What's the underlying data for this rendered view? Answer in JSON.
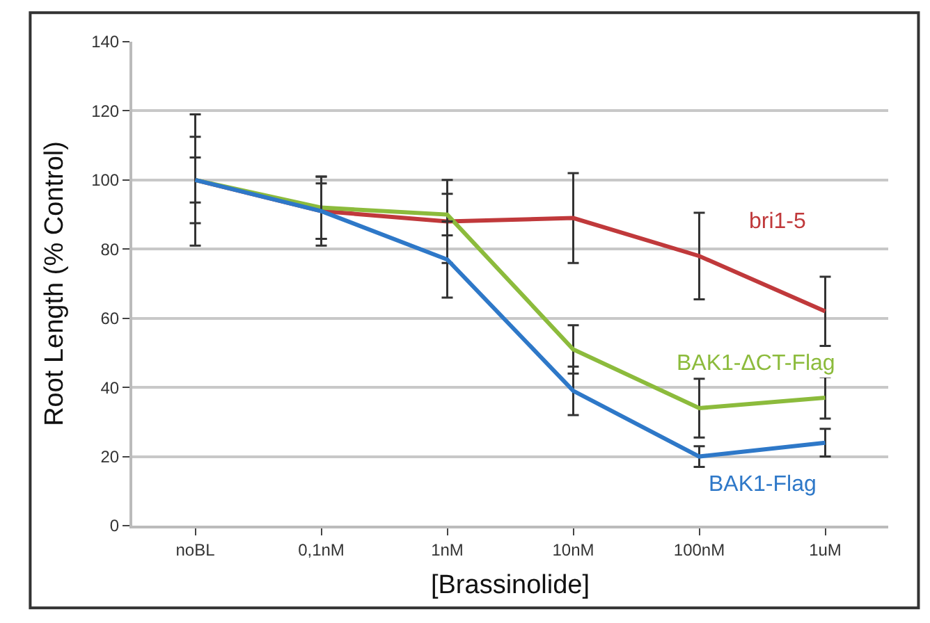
{
  "chart_data": {
    "type": "line",
    "xlabel": "[Brassinolide]",
    "ylabel": "Root Length (% Control)",
    "categories": [
      "noBL",
      "0,1nM",
      "1nM",
      "10nM",
      "100nM",
      "1uM"
    ],
    "series": [
      {
        "name": "bri1-5",
        "color": "#c0393b",
        "values": [
          100,
          91,
          88,
          89,
          78,
          62
        ],
        "errors": [
          19,
          10,
          12,
          13,
          12.5,
          10
        ]
      },
      {
        "name": "BAK1-ΔCT-Flag",
        "color": "#8cbb3c",
        "values": [
          100,
          92,
          90,
          51,
          34,
          37
        ],
        "errors": [
          12.5,
          9,
          6,
          7,
          8.5,
          6
        ]
      },
      {
        "name": "BAK1-Flag",
        "color": "#2e78c8",
        "values": [
          100,
          91,
          77,
          39,
          20,
          24
        ],
        "errors": [
          6.5,
          8,
          11,
          7,
          3,
          4
        ]
      }
    ],
    "ylim": [
      0,
      140
    ],
    "yticks": [
      0,
      20,
      40,
      60,
      80,
      100,
      120,
      140
    ],
    "grid": "y",
    "legend": false,
    "marker": "none",
    "line_style": "solid"
  }
}
